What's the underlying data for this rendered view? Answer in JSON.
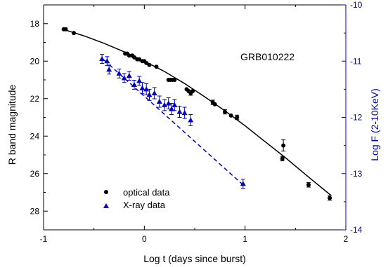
{
  "chart_data": {
    "type": "scatter",
    "annotation": "GRB010222",
    "xlabel": "Log t (days since burst)",
    "ylabel_left": "R band magnitude",
    "ylabel_right": "Log F (2-10KeV)",
    "xlim": [
      -1,
      2
    ],
    "ylim_left": [
      29,
      17
    ],
    "ylim_right": [
      -14,
      -10
    ],
    "x_ticks": [
      "-1",
      "0",
      "1",
      "2"
    ],
    "y_left_ticks": [
      "18",
      "20",
      "22",
      "24",
      "26",
      "28"
    ],
    "y_right_ticks": [
      "-10",
      "-11",
      "-12",
      "-13",
      "-14"
    ],
    "colors": {
      "optical": "#000000",
      "xray": "#0000cc",
      "axis_left": "#000000",
      "axis_right": "#0000cc"
    },
    "legend": {
      "position": "bottom-left",
      "optical_label": "optical data",
      "xray_label": "X-ray data"
    },
    "series": [
      {
        "name": "optical data",
        "marker": "circle",
        "axis": "left",
        "points": [
          {
            "x": -0.8,
            "y": 18.3
          },
          {
            "x": -0.78,
            "y": 18.3
          },
          {
            "x": -0.7,
            "y": 18.5
          },
          {
            "x": -0.19,
            "y": 19.6
          },
          {
            "x": -0.17,
            "y": 19.6
          },
          {
            "x": -0.15,
            "y": 19.7
          },
          {
            "x": -0.12,
            "y": 19.7
          },
          {
            "x": -0.1,
            "y": 19.8
          },
          {
            "x": -0.07,
            "y": 19.9
          },
          {
            "x": -0.05,
            "y": 19.9
          },
          {
            "x": -0.02,
            "y": 20.0
          },
          {
            "x": 0.0,
            "y": 20.0
          },
          {
            "x": 0.02,
            "y": 20.1
          },
          {
            "x": 0.05,
            "y": 20.2
          },
          {
            "x": 0.12,
            "y": 20.3
          },
          {
            "x": 0.24,
            "y": 21.0
          },
          {
            "x": 0.26,
            "y": 21.0
          },
          {
            "x": 0.28,
            "y": 21.0
          },
          {
            "x": 0.3,
            "y": 21.0
          },
          {
            "x": 0.42,
            "y": 21.5
          },
          {
            "x": 0.44,
            "y": 21.6
          },
          {
            "x": 0.46,
            "y": 21.7
          },
          {
            "x": 0.48,
            "y": 21.6
          },
          {
            "x": 0.68,
            "y": 22.2
          },
          {
            "x": 0.7,
            "y": 22.3
          },
          {
            "x": 0.8,
            "y": 22.7
          },
          {
            "x": 0.86,
            "y": 22.9
          },
          {
            "x": 0.92,
            "y": 23.0
          },
          {
            "x": 1.37,
            "y": 25.2
          },
          {
            "x": 1.63,
            "y": 26.6
          },
          {
            "x": 1.84,
            "y": 27.3
          }
        ],
        "error_bars": [
          {
            "x": 0.46,
            "y": 21.7,
            "err": 0.12
          },
          {
            "x": 0.68,
            "y": 22.2,
            "err": 0.12
          },
          {
            "x": 0.8,
            "y": 22.7,
            "err": 0.12
          },
          {
            "x": 0.92,
            "y": 23.0,
            "err": 0.12
          },
          {
            "x": 1.38,
            "y": 24.5,
            "err": 0.3
          },
          {
            "x": 1.37,
            "y": 25.2,
            "err": 0.12
          },
          {
            "x": 1.63,
            "y": 26.6,
            "err": 0.12
          },
          {
            "x": 1.84,
            "y": 27.3,
            "err": 0.12
          }
        ],
        "fit_curve": [
          {
            "x": -0.82,
            "y": 18.28
          },
          {
            "x": -0.6,
            "y": 18.65
          },
          {
            "x": -0.4,
            "y": 19.05
          },
          {
            "x": -0.2,
            "y": 19.5
          },
          {
            "x": 0.0,
            "y": 20.0
          },
          {
            "x": 0.2,
            "y": 20.55
          },
          {
            "x": 0.4,
            "y": 21.2
          },
          {
            "x": 0.6,
            "y": 21.9
          },
          {
            "x": 0.8,
            "y": 22.65
          },
          {
            "x": 1.0,
            "y": 23.45
          },
          {
            "x": 1.2,
            "y": 24.3
          },
          {
            "x": 1.4,
            "y": 25.15
          },
          {
            "x": 1.6,
            "y": 26.05
          },
          {
            "x": 1.85,
            "y": 27.15
          }
        ]
      },
      {
        "name": "X-ray data",
        "marker": "triangle",
        "axis": "right",
        "points": [
          {
            "x": -0.42,
            "y": -10.96,
            "err": 0.08
          },
          {
            "x": -0.37,
            "y": -11.0,
            "err": 0.08
          },
          {
            "x": -0.35,
            "y": -11.15,
            "err": 0.08
          },
          {
            "x": -0.25,
            "y": -11.22,
            "err": 0.08
          },
          {
            "x": -0.2,
            "y": -11.3,
            "err": 0.08
          },
          {
            "x": -0.15,
            "y": -11.26,
            "err": 0.08
          },
          {
            "x": -0.1,
            "y": -11.42,
            "err": 0.08
          },
          {
            "x": -0.05,
            "y": -11.35,
            "err": 0.08
          },
          {
            "x": -0.02,
            "y": -11.48,
            "err": 0.1
          },
          {
            "x": 0.02,
            "y": -11.5,
            "err": 0.1
          },
          {
            "x": 0.05,
            "y": -11.6,
            "err": 0.1
          },
          {
            "x": 0.1,
            "y": -11.57,
            "err": 0.1
          },
          {
            "x": 0.15,
            "y": -11.72,
            "err": 0.1
          },
          {
            "x": 0.2,
            "y": -11.78,
            "err": 0.1
          },
          {
            "x": 0.24,
            "y": -11.75,
            "err": 0.1
          },
          {
            "x": 0.27,
            "y": -11.85,
            "err": 0.1
          },
          {
            "x": 0.3,
            "y": -11.78,
            "err": 0.1
          },
          {
            "x": 0.35,
            "y": -11.9,
            "err": 0.1
          },
          {
            "x": 0.4,
            "y": -11.92,
            "err": 0.1
          },
          {
            "x": 0.46,
            "y": -12.05,
            "err": 0.1
          },
          {
            "x": 0.98,
            "y": -13.18,
            "err": 0.08
          }
        ],
        "fit_line": [
          {
            "x": -0.4,
            "y": -10.98
          },
          {
            "x": 0.98,
            "y": -13.2
          }
        ]
      }
    ]
  }
}
